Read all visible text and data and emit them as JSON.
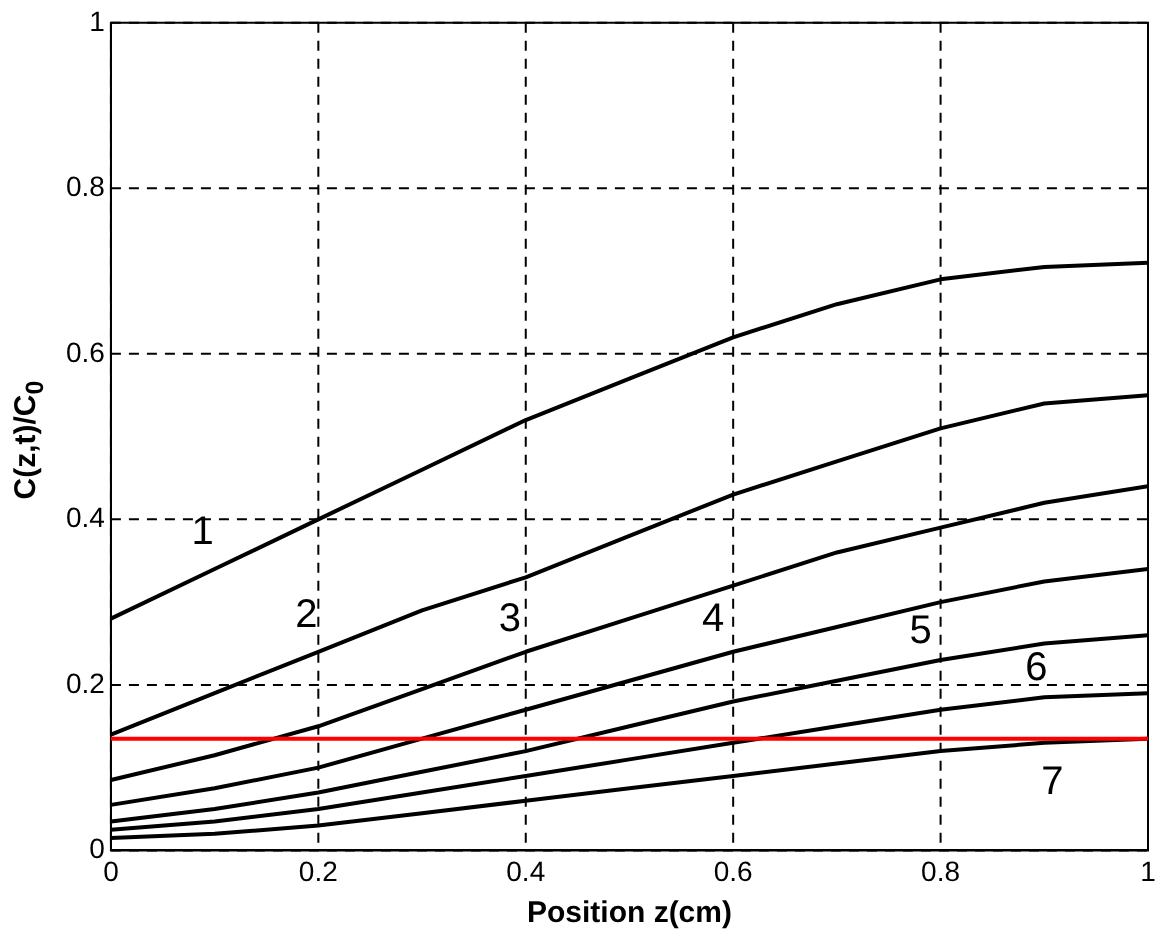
{
  "chart_data": {
    "type": "line",
    "xlabel": "Position z(cm)",
    "ylabel": "C(z,t)/C$_{0}$",
    "x": [
      0,
      0.1,
      0.2,
      0.3,
      0.4,
      0.5,
      0.6,
      0.7,
      0.8,
      0.9,
      1
    ],
    "xlim": [
      0,
      1
    ],
    "xticks": [
      0,
      0.2,
      0.4,
      0.6,
      0.8,
      1
    ],
    "ylim": [
      0,
      1
    ],
    "yticks": [
      0,
      0.2,
      0.4,
      0.6,
      0.8,
      1
    ],
    "grid": true,
    "marker": "none",
    "line_style": "solid",
    "series": [
      {
        "name": "1",
        "color": "#000000",
        "values": [
          0.28,
          0.34,
          0.4,
          0.46,
          0.52,
          0.57,
          0.62,
          0.66,
          0.69,
          0.705,
          0.71
        ]
      },
      {
        "name": "2",
        "color": "#000000",
        "values": [
          0.14,
          0.19,
          0.24,
          0.29,
          0.33,
          0.38,
          0.43,
          0.47,
          0.51,
          0.54,
          0.55
        ]
      },
      {
        "name": "3",
        "color": "#000000",
        "values": [
          0.085,
          0.115,
          0.15,
          0.195,
          0.24,
          0.28,
          0.32,
          0.36,
          0.39,
          0.42,
          0.44
        ]
      },
      {
        "name": "4",
        "color": "#000000",
        "values": [
          0.055,
          0.075,
          0.1,
          0.135,
          0.17,
          0.205,
          0.24,
          0.27,
          0.3,
          0.325,
          0.34
        ]
      },
      {
        "name": "5",
        "color": "#000000",
        "values": [
          0.035,
          0.05,
          0.07,
          0.095,
          0.12,
          0.15,
          0.18,
          0.205,
          0.23,
          0.25,
          0.26
        ]
      },
      {
        "name": "6",
        "color": "#000000",
        "values": [
          0.025,
          0.035,
          0.05,
          0.07,
          0.09,
          0.11,
          0.13,
          0.15,
          0.17,
          0.185,
          0.19
        ]
      },
      {
        "name": "7",
        "color": "#000000",
        "values": [
          0.015,
          0.02,
          0.03,
          0.045,
          0.06,
          0.075,
          0.09,
          0.105,
          0.12,
          0.13,
          0.135
        ]
      }
    ],
    "ref_lines": [
      {
        "axis": "y",
        "value": 0.135,
        "color": "#ff0000"
      }
    ]
  }
}
